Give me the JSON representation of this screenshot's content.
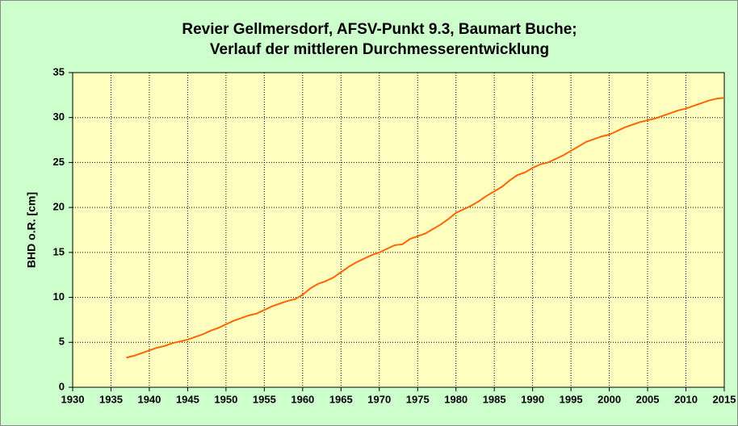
{
  "chart_data": {
    "type": "line",
    "title": [
      "Revier Gellmersdorf, AFSV-Punkt 9.3, Baumart Buche;",
      "Verlauf der mittleren Durchmesserentwicklung"
    ],
    "y_label": "BHD o.R. [cm]",
    "x": [
      1937,
      1938,
      1939,
      1940,
      1941,
      1942,
      1943,
      1944,
      1945,
      1946,
      1947,
      1948,
      1949,
      1950,
      1951,
      1952,
      1953,
      1954,
      1955,
      1956,
      1957,
      1958,
      1959,
      1960,
      1961,
      1962,
      1963,
      1964,
      1965,
      1966,
      1967,
      1968,
      1969,
      1970,
      1971,
      1972,
      1973,
      1974,
      1975,
      1976,
      1977,
      1978,
      1979,
      1980,
      1981,
      1982,
      1983,
      1984,
      1985,
      1986,
      1987,
      1988,
      1989,
      1990,
      1991,
      1992,
      1993,
      1994,
      1995,
      1996,
      1997,
      1998,
      1999,
      2000,
      2001,
      2002,
      2003,
      2004,
      2005,
      2006,
      2007,
      2008,
      2009,
      2010,
      2011,
      2012,
      2013,
      2014,
      2015
    ],
    "values": [
      3.3,
      3.5,
      3.8,
      4.1,
      4.4,
      4.6,
      4.9,
      5.1,
      5.3,
      5.6,
      5.9,
      6.3,
      6.6,
      7.0,
      7.4,
      7.7,
      8.0,
      8.2,
      8.6,
      9.0,
      9.3,
      9.6,
      9.8,
      10.3,
      11.0,
      11.5,
      11.8,
      12.2,
      12.8,
      13.4,
      13.9,
      14.3,
      14.7,
      15.0,
      15.4,
      15.8,
      15.9,
      16.5,
      16.8,
      17.1,
      17.6,
      18.1,
      18.7,
      19.4,
      19.8,
      20.2,
      20.7,
      21.3,
      21.8,
      22.3,
      23.0,
      23.6,
      23.9,
      24.4,
      24.8,
      25.0,
      25.4,
      25.8,
      26.3,
      26.8,
      27.3,
      27.6,
      27.9,
      28.1,
      28.5,
      28.9,
      29.2,
      29.5,
      29.7,
      29.9,
      30.2,
      30.5,
      30.8,
      31.0,
      31.3,
      31.6,
      31.9,
      32.1,
      32.2
    ],
    "color": "#ff6600",
    "xlim": [
      1930,
      2015
    ],
    "xticks": [
      1930,
      1935,
      1940,
      1945,
      1950,
      1955,
      1960,
      1965,
      1970,
      1975,
      1980,
      1985,
      1990,
      1995,
      2000,
      2005,
      2010,
      2015
    ],
    "ylim": [
      0,
      35
    ],
    "yticks": [
      0,
      5,
      10,
      15,
      20,
      25,
      30,
      35
    ],
    "grid": true,
    "background": "#ccffcc",
    "plot_background": "#ffffc0"
  }
}
